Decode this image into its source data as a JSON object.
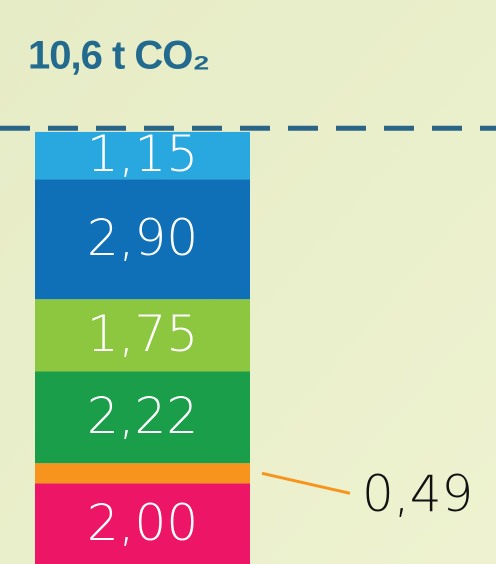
{
  "chart_data": {
    "type": "stacked-bar",
    "title": "10,6 t CO₂",
    "total": 10.6,
    "series": [
      {
        "color": "#ec1566",
        "values": [
          2.0
        ],
        "value_labels": [
          "2,00"
        ]
      },
      {
        "color": "#f7941d",
        "values": [
          0.49
        ],
        "value_labels": [
          "0,49"
        ]
      },
      {
        "color": "#1a9e4a",
        "values": [
          2.22
        ],
        "value_labels": [
          "2,22"
        ]
      },
      {
        "color": "#8dc63f",
        "values": [
          1.75
        ],
        "value_labels": [
          "1,75"
        ]
      },
      {
        "color": "#0f70b7",
        "values": [
          2.9
        ],
        "value_labels": [
          "2,90"
        ]
      },
      {
        "color": "#29a8e0",
        "values": [
          1.15
        ],
        "value_labels": [
          "1,15"
        ]
      }
    ]
  }
}
